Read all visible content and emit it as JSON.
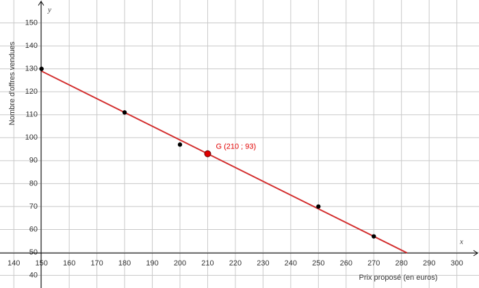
{
  "chart_data": {
    "type": "scatter",
    "xlabel": "Prix proposé (en euros)",
    "ylabel": "Nombre d'offres vendues",
    "x_axis_name": "x",
    "y_axis_name": "y",
    "xlim": [
      135,
      308
    ],
    "ylim": [
      34.5,
      160
    ],
    "xticks": [
      140,
      150,
      160,
      170,
      180,
      190,
      200,
      210,
      220,
      230,
      240,
      250,
      260,
      270,
      280,
      290,
      300
    ],
    "yticks": [
      40,
      50,
      60,
      70,
      80,
      90,
      100,
      110,
      120,
      130,
      140,
      150
    ],
    "grid": true,
    "series": [
      {
        "color": "#000000",
        "x": [
          150,
          180,
          200,
          250,
          270
        ],
        "values": [
          130,
          111,
          97,
          70,
          57
        ]
      }
    ],
    "fit_line": {
      "color": "#d32f2f",
      "x": [
        150,
        282
      ],
      "values": [
        129,
        49.8
      ]
    },
    "point_g": {
      "label": "G (210 ; 93)",
      "x": 210,
      "values": 93,
      "color": "#e00000"
    }
  }
}
